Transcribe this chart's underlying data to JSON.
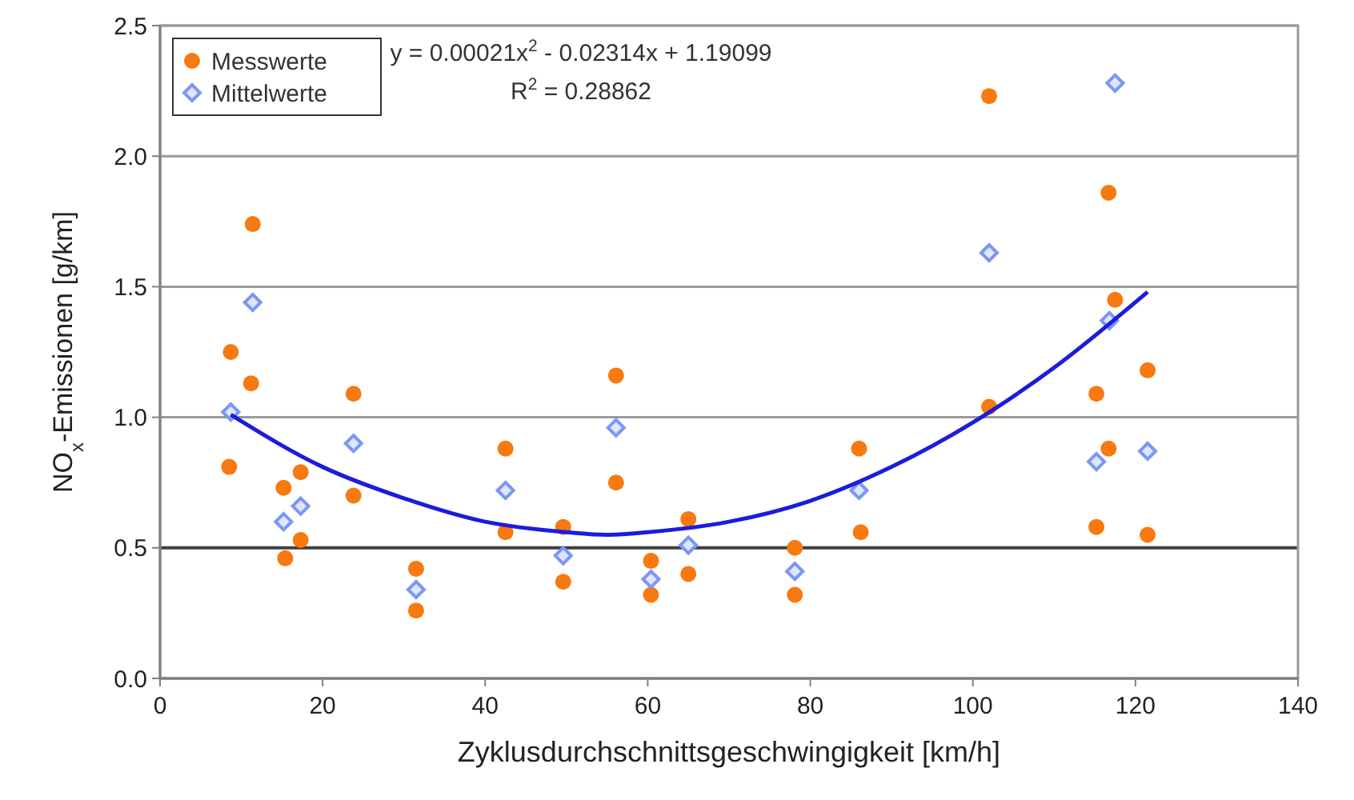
{
  "chart_data": {
    "type": "scatter",
    "xlabel": "Zyklusdurchschnittsgeschwingigkeit [km/h]",
    "ylabel": "NO$_{x}$-Emissionen [g/km]",
    "xlim": [
      0,
      140
    ],
    "xticks": [
      0,
      20,
      40,
      60,
      80,
      100,
      120,
      140
    ],
    "ylim": [
      0,
      2.5
    ],
    "yticks": [
      {
        "value": 0,
        "label": "0.0"
      },
      {
        "value": 0.5,
        "label": "0.5"
      },
      {
        "value": 1,
        "label": "1.0"
      },
      {
        "value": 1.5,
        "label": "1.5"
      },
      {
        "value": 2,
        "label": "2.0"
      },
      {
        "value": 2.5,
        "label": "2.5"
      }
    ],
    "grid": "y",
    "legend": "top left",
    "ref_lines": [
      {
        "axis": "y",
        "value": 0.5,
        "color": "#404040"
      }
    ],
    "annotations": [
      "y = 0.00021x$^{2}$ - 0.02314x + 1.19099",
      "R$^{2}$ = 0.28862"
    ],
    "series": [
      {
        "name": "Messwerte",
        "marker": "circle",
        "color": "#f7790f",
        "x": [
          8.5,
          8.7,
          11.4,
          11.2,
          15.2,
          15.4,
          17.3,
          17.3,
          23.8,
          23.8,
          31.5,
          31.5,
          42.5,
          42.5,
          49.6,
          49.6,
          56.1,
          56.1,
          60.4,
          60.4,
          65,
          65,
          78.1,
          78.1,
          86,
          86.2,
          102,
          102,
          116.7,
          117.5,
          115.2,
          116.7,
          115.2,
          121.5,
          121.5
        ],
        "values": [
          0.81,
          1.25,
          1.74,
          1.13,
          0.73,
          0.46,
          0.79,
          0.53,
          1.09,
          0.7,
          0.42,
          0.26,
          0.88,
          0.56,
          0.58,
          0.37,
          1.16,
          0.75,
          0.45,
          0.32,
          0.61,
          0.4,
          0.5,
          0.32,
          0.88,
          0.56,
          2.23,
          1.04,
          1.86,
          1.45,
          1.09,
          0.88,
          0.58,
          1.18,
          0.55
        ]
      },
      {
        "name": "Mittelwerte",
        "marker": "diamond",
        "color": "#7b97f2",
        "x": [
          8.7,
          11.4,
          15.2,
          17.3,
          23.8,
          31.5,
          42.5,
          49.6,
          56.1,
          60.4,
          65,
          78.1,
          86,
          102,
          117.5,
          116.8,
          115.2,
          121.5
        ],
        "values": [
          1.02,
          1.44,
          0.6,
          0.66,
          0.9,
          0.34,
          0.72,
          0.47,
          0.96,
          0.38,
          0.51,
          0.41,
          0.72,
          1.63,
          2.28,
          1.37,
          0.83,
          0.87
        ]
      },
      {
        "type": "line",
        "marker": "none",
        "line_style": "solid",
        "color": "#1c1cdc",
        "x": [
          8.7,
          20,
          30,
          40,
          50,
          55,
          60,
          70,
          80,
          90,
          100,
          110,
          121.5
        ],
        "values": [
          1.01,
          0.81,
          0.69,
          0.6,
          0.56,
          0.55,
          0.56,
          0.6,
          0.68,
          0.81,
          0.98,
          1.19,
          1.48
        ]
      }
    ]
  }
}
